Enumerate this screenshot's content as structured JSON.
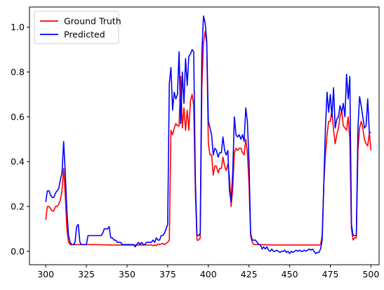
{
  "chart_data": {
    "type": "line",
    "xlim": [
      290,
      505
    ],
    "ylim": [
      -0.06,
      1.09
    ],
    "x_ticks": [
      300,
      325,
      350,
      375,
      400,
      425,
      450,
      475,
      500
    ],
    "y_ticks": [
      0.0,
      0.2,
      0.4,
      0.6,
      0.8,
      1.0
    ],
    "x_tick_labels": [
      "300",
      "325",
      "350",
      "375",
      "400",
      "425",
      "450",
      "475",
      "500"
    ],
    "y_tick_labels": [
      "0.0",
      "0.2",
      "0.4",
      "0.6",
      "0.8",
      "1.0"
    ],
    "grid": false,
    "legend_position": "top-left",
    "series": [
      {
        "name": "Ground Truth",
        "color": "#ff0000",
        "points": [
          [
            300,
            0.14
          ],
          [
            301,
            0.2
          ],
          [
            302,
            0.2
          ],
          [
            303,
            0.19
          ],
          [
            304,
            0.18
          ],
          [
            305,
            0.18
          ],
          [
            306,
            0.2
          ],
          [
            307,
            0.2
          ],
          [
            308,
            0.21
          ],
          [
            309,
            0.23
          ],
          [
            310,
            0.27
          ],
          [
            311,
            0.37
          ],
          [
            312,
            0.25
          ],
          [
            313,
            0.1
          ],
          [
            314,
            0.04
          ],
          [
            315,
            0.03
          ],
          [
            320,
            0.03
          ],
          [
            330,
            0.03
          ],
          [
            340,
            0.028
          ],
          [
            350,
            0.028
          ],
          [
            360,
            0.028
          ],
          [
            365,
            0.028
          ],
          [
            366,
            0.025
          ],
          [
            367,
            0.028
          ],
          [
            368,
            0.025
          ],
          [
            369,
            0.032
          ],
          [
            370,
            0.03
          ],
          [
            372,
            0.035
          ],
          [
            373,
            0.03
          ],
          [
            374,
            0.035
          ],
          [
            375,
            0.04
          ],
          [
            376,
            0.05
          ],
          [
            377,
            0.54
          ],
          [
            378,
            0.52
          ],
          [
            379,
            0.55
          ],
          [
            380,
            0.57
          ],
          [
            381,
            0.56
          ],
          [
            382,
            0.56
          ],
          [
            383,
            0.78
          ],
          [
            384,
            0.55
          ],
          [
            385,
            0.64
          ],
          [
            386,
            0.54
          ],
          [
            387,
            0.63
          ],
          [
            388,
            0.54
          ],
          [
            389,
            0.67
          ],
          [
            390,
            0.7
          ],
          [
            391,
            0.65
          ],
          [
            392,
            0.27
          ],
          [
            393,
            0.05
          ],
          [
            394,
            0.05
          ],
          [
            395,
            0.06
          ],
          [
            396,
            0.73
          ],
          [
            397,
            0.93
          ],
          [
            398,
            0.98
          ],
          [
            399,
            0.93
          ],
          [
            400,
            0.48
          ],
          [
            401,
            0.43
          ],
          [
            402,
            0.43
          ],
          [
            403,
            0.34
          ],
          [
            404,
            0.38
          ],
          [
            405,
            0.38
          ],
          [
            406,
            0.35
          ],
          [
            407,
            0.37
          ],
          [
            408,
            0.37
          ],
          [
            409,
            0.42
          ],
          [
            410,
            0.38
          ],
          [
            411,
            0.36
          ],
          [
            412,
            0.39
          ],
          [
            413,
            0.33
          ],
          [
            414,
            0.2
          ],
          [
            415,
            0.28
          ],
          [
            416,
            0.44
          ],
          [
            417,
            0.46
          ],
          [
            418,
            0.45
          ],
          [
            419,
            0.46
          ],
          [
            420,
            0.46
          ],
          [
            421,
            0.44
          ],
          [
            422,
            0.43
          ],
          [
            423,
            0.5
          ],
          [
            424,
            0.44
          ],
          [
            425,
            0.3
          ],
          [
            426,
            0.07
          ],
          [
            427,
            0.04
          ],
          [
            428,
            0.03
          ],
          [
            430,
            0.03
          ],
          [
            440,
            0.028
          ],
          [
            450,
            0.028
          ],
          [
            460,
            0.028
          ],
          [
            468,
            0.028
          ],
          [
            469,
            0.03
          ],
          [
            470,
            0.07
          ],
          [
            471,
            0.3
          ],
          [
            472,
            0.43
          ],
          [
            473,
            0.52
          ],
          [
            474,
            0.58
          ],
          [
            475,
            0.58
          ],
          [
            476,
            0.63
          ],
          [
            477,
            0.54
          ],
          [
            478,
            0.48
          ],
          [
            479,
            0.52
          ],
          [
            480,
            0.55
          ],
          [
            481,
            0.6
          ],
          [
            482,
            0.63
          ],
          [
            483,
            0.56
          ],
          [
            484,
            0.55
          ],
          [
            485,
            0.54
          ],
          [
            486,
            0.6
          ],
          [
            487,
            0.5
          ],
          [
            488,
            0.1
          ],
          [
            489,
            0.05
          ],
          [
            490,
            0.06
          ],
          [
            491,
            0.06
          ],
          [
            492,
            0.45
          ],
          [
            493,
            0.55
          ],
          [
            494,
            0.58
          ],
          [
            495,
            0.55
          ],
          [
            496,
            0.5
          ],
          [
            497,
            0.48
          ],
          [
            498,
            0.47
          ],
          [
            499,
            0.53
          ],
          [
            500,
            0.45
          ]
        ]
      },
      {
        "name": "Predicted",
        "color": "#0000ff",
        "points": [
          [
            300,
            0.22
          ],
          [
            301,
            0.27
          ],
          [
            302,
            0.27
          ],
          [
            303,
            0.25
          ],
          [
            304,
            0.24
          ],
          [
            305,
            0.24
          ],
          [
            306,
            0.26
          ],
          [
            307,
            0.27
          ],
          [
            308,
            0.28
          ],
          [
            309,
            0.32
          ],
          [
            310,
            0.35
          ],
          [
            311,
            0.49
          ],
          [
            312,
            0.35
          ],
          [
            313,
            0.18
          ],
          [
            314,
            0.07
          ],
          [
            315,
            0.04
          ],
          [
            316,
            0.03
          ],
          [
            317,
            0.03
          ],
          [
            318,
            0.04
          ],
          [
            319,
            0.11
          ],
          [
            320,
            0.12
          ],
          [
            321,
            0.04
          ],
          [
            322,
            0.03
          ],
          [
            323,
            0.03
          ],
          [
            325,
            0.03
          ],
          [
            326,
            0.07
          ],
          [
            327,
            0.07
          ],
          [
            330,
            0.07
          ],
          [
            333,
            0.07
          ],
          [
            334,
            0.07
          ],
          [
            335,
            0.08
          ],
          [
            336,
            0.1
          ],
          [
            337,
            0.1
          ],
          [
            338,
            0.1
          ],
          [
            339,
            0.11
          ],
          [
            340,
            0.06
          ],
          [
            341,
            0.06
          ],
          [
            342,
            0.05
          ],
          [
            343,
            0.05
          ],
          [
            344,
            0.04
          ],
          [
            345,
            0.04
          ],
          [
            346,
            0.04
          ],
          [
            347,
            0.03
          ],
          [
            348,
            0.03
          ],
          [
            350,
            0.03
          ],
          [
            353,
            0.03
          ],
          [
            354,
            0.03
          ],
          [
            355,
            0.02
          ],
          [
            356,
            0.03
          ],
          [
            357,
            0.04
          ],
          [
            358,
            0.03
          ],
          [
            359,
            0.04
          ],
          [
            360,
            0.03
          ],
          [
            361,
            0.03
          ],
          [
            362,
            0.04
          ],
          [
            363,
            0.04
          ],
          [
            364,
            0.04
          ],
          [
            365,
            0.04
          ],
          [
            366,
            0.05
          ],
          [
            367,
            0.04
          ],
          [
            368,
            0.06
          ],
          [
            369,
            0.05
          ],
          [
            370,
            0.05
          ],
          [
            371,
            0.07
          ],
          [
            372,
            0.07
          ],
          [
            373,
            0.08
          ],
          [
            374,
            0.1
          ],
          [
            375,
            0.12
          ],
          [
            376,
            0.75
          ],
          [
            377,
            0.82
          ],
          [
            378,
            0.63
          ],
          [
            379,
            0.71
          ],
          [
            380,
            0.68
          ],
          [
            381,
            0.7
          ],
          [
            382,
            0.89
          ],
          [
            383,
            0.57
          ],
          [
            384,
            0.8
          ],
          [
            385,
            0.66
          ],
          [
            386,
            0.86
          ],
          [
            387,
            0.74
          ],
          [
            388,
            0.87
          ],
          [
            389,
            0.88
          ],
          [
            390,
            0.9
          ],
          [
            391,
            0.89
          ],
          [
            392,
            0.32
          ],
          [
            393,
            0.07
          ],
          [
            394,
            0.07
          ],
          [
            395,
            0.08
          ],
          [
            396,
            0.88
          ],
          [
            397,
            1.05
          ],
          [
            398,
            1.02
          ],
          [
            399,
            0.94
          ],
          [
            400,
            0.58
          ],
          [
            401,
            0.55
          ],
          [
            402,
            0.52
          ],
          [
            403,
            0.43
          ],
          [
            404,
            0.46
          ],
          [
            405,
            0.45
          ],
          [
            406,
            0.42
          ],
          [
            407,
            0.44
          ],
          [
            408,
            0.44
          ],
          [
            409,
            0.51
          ],
          [
            410,
            0.45
          ],
          [
            411,
            0.43
          ],
          [
            412,
            0.45
          ],
          [
            413,
            0.27
          ],
          [
            414,
            0.22
          ],
          [
            415,
            0.35
          ],
          [
            416,
            0.6
          ],
          [
            417,
            0.52
          ],
          [
            418,
            0.51
          ],
          [
            419,
            0.52
          ],
          [
            420,
            0.5
          ],
          [
            421,
            0.52
          ],
          [
            422,
            0.49
          ],
          [
            423,
            0.64
          ],
          [
            424,
            0.58
          ],
          [
            425,
            0.4
          ],
          [
            426,
            0.08
          ],
          [
            427,
            0.05
          ],
          [
            428,
            0.05
          ],
          [
            429,
            0.05
          ],
          [
            430,
            0.04
          ],
          [
            431,
            0.03
          ],
          [
            432,
            0.03
          ],
          [
            433,
            0.01
          ],
          [
            434,
            0.02
          ],
          [
            435,
            0.01
          ],
          [
            436,
            0.02
          ],
          [
            437,
            0.005
          ],
          [
            438,
            0.0
          ],
          [
            439,
            0.01
          ],
          [
            440,
            0.0
          ],
          [
            441,
            0.0
          ],
          [
            442,
            0.005
          ],
          [
            443,
            0.0
          ],
          [
            444,
            -0.005
          ],
          [
            445,
            0.0
          ],
          [
            446,
            0.0
          ],
          [
            447,
            0.005
          ],
          [
            448,
            -0.005
          ],
          [
            449,
            0.0
          ],
          [
            450,
            -0.01
          ],
          [
            451,
            0.0
          ],
          [
            452,
            -0.005
          ],
          [
            453,
            0.0
          ],
          [
            454,
            0.005
          ],
          [
            455,
            0.0
          ],
          [
            456,
            0.005
          ],
          [
            457,
            0.0
          ],
          [
            458,
            0.0
          ],
          [
            459,
            0.005
          ],
          [
            460,
            0.0
          ],
          [
            461,
            0.005
          ],
          [
            462,
            0.01
          ],
          [
            463,
            0.005
          ],
          [
            464,
            0.01
          ],
          [
            465,
            0.0
          ],
          [
            466,
            -0.01
          ],
          [
            467,
            -0.005
          ],
          [
            468,
            -0.005
          ],
          [
            469,
            0.01
          ],
          [
            470,
            0.05
          ],
          [
            471,
            0.3
          ],
          [
            472,
            0.55
          ],
          [
            473,
            0.71
          ],
          [
            474,
            0.62
          ],
          [
            475,
            0.7
          ],
          [
            476,
            0.6
          ],
          [
            477,
            0.73
          ],
          [
            478,
            0.55
          ],
          [
            479,
            0.59
          ],
          [
            480,
            0.6
          ],
          [
            481,
            0.65
          ],
          [
            482,
            0.62
          ],
          [
            483,
            0.66
          ],
          [
            484,
            0.6
          ],
          [
            485,
            0.79
          ],
          [
            486,
            0.68
          ],
          [
            487,
            0.78
          ],
          [
            488,
            0.12
          ],
          [
            489,
            0.07
          ],
          [
            490,
            0.07
          ],
          [
            491,
            0.07
          ],
          [
            492,
            0.55
          ],
          [
            493,
            0.69
          ],
          [
            494,
            0.65
          ],
          [
            495,
            0.6
          ],
          [
            496,
            0.55
          ],
          [
            497,
            0.56
          ],
          [
            498,
            0.68
          ],
          [
            499,
            0.53
          ],
          [
            500,
            0.53
          ]
        ]
      }
    ]
  }
}
